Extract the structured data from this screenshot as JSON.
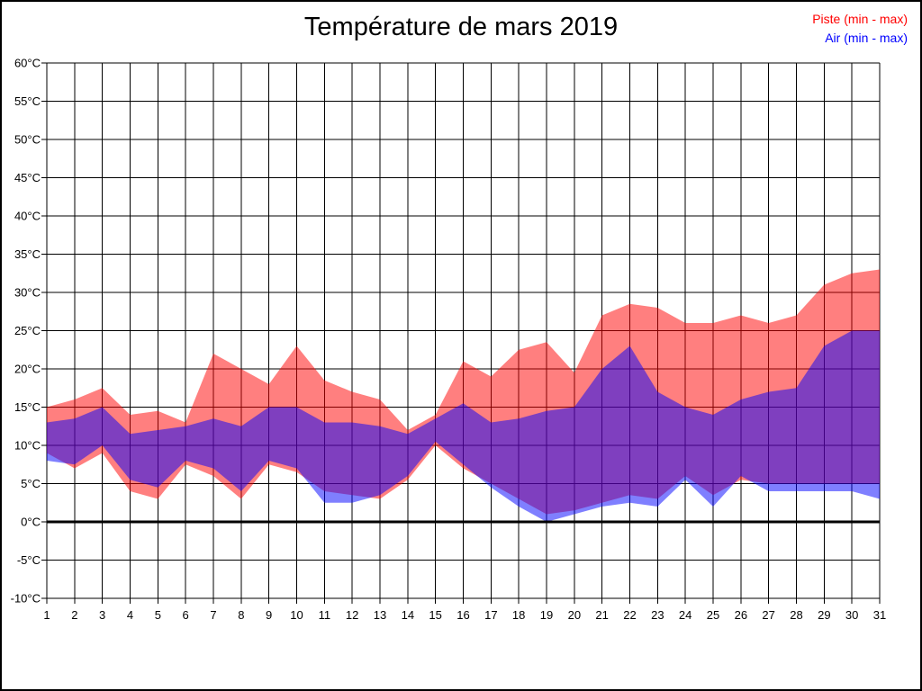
{
  "page": {
    "background": "#ffffff",
    "frame_color": "#000000"
  },
  "chart_data": {
    "type": "area",
    "title": "Température de mars 2019",
    "xlabel": "",
    "ylabel": "",
    "x": [
      1,
      2,
      3,
      4,
      5,
      6,
      7,
      8,
      9,
      10,
      11,
      12,
      13,
      14,
      15,
      16,
      17,
      18,
      19,
      20,
      21,
      22,
      23,
      24,
      25,
      26,
      27,
      28,
      29,
      30,
      31
    ],
    "x_tick_labels": [
      "1",
      "2",
      "3",
      "4",
      "5",
      "6",
      "7",
      "8",
      "9",
      "10",
      "11",
      "12",
      "13",
      "14",
      "15",
      "16",
      "17",
      "18",
      "19",
      "20",
      "21",
      "22",
      "23",
      "24",
      "25",
      "26",
      "27",
      "28",
      "29",
      "30",
      "31"
    ],
    "y_tick_values": [
      60,
      55,
      50,
      45,
      40,
      35,
      30,
      25,
      20,
      15,
      10,
      5,
      0,
      -5,
      -10
    ],
    "y_tick_labels": [
      "60°C",
      "55°C",
      "50°C",
      "45°C",
      "40°C",
      "35°C",
      "30°C",
      "25°C",
      "20°C",
      "15°C",
      "10°C",
      "5°C",
      "0°C",
      "-5°C",
      "-10°C"
    ],
    "ylim": [
      -10,
      60
    ],
    "grid": true,
    "zero_line_value": 0,
    "zero_line_color": "#000000",
    "grid_color": "#000000",
    "text_color": "#000000",
    "legend_position": "top-right",
    "series": [
      {
        "name": "Piste",
        "legend": "Piste (min - max)",
        "color": "#ff0000",
        "fill_opacity": 0.5,
        "min": [
          9,
          7,
          9,
          4,
          3,
          7.5,
          6,
          3,
          7.5,
          6.5,
          4,
          3.5,
          3,
          5.5,
          10,
          7,
          5,
          3,
          1,
          1.5,
          2.5,
          3.5,
          3,
          6,
          3.5,
          5.5,
          5,
          5,
          5,
          5,
          5
        ],
        "max": [
          15,
          16,
          17.5,
          14,
          14.5,
          13,
          22,
          20,
          18,
          23,
          18.5,
          17,
          16,
          12,
          14,
          21,
          19,
          22.5,
          23.5,
          19.5,
          27,
          28.5,
          28,
          26,
          26,
          27,
          26,
          27,
          31,
          32.5,
          33
        ]
      },
      {
        "name": "Air",
        "legend": "Air (min - max)",
        "color": "#0000ff",
        "fill_opacity": 0.5,
        "min": [
          8,
          7.5,
          10,
          5.5,
          4.5,
          8,
          7,
          4,
          8,
          7,
          2.5,
          2.5,
          3.5,
          6,
          10.5,
          7.5,
          4.5,
          2,
          0,
          1,
          2,
          2.5,
          2,
          5.5,
          2,
          6,
          4,
          4,
          4,
          4,
          3
        ],
        "max": [
          13,
          13.5,
          15,
          11.5,
          12,
          12.5,
          13.5,
          12.5,
          15,
          15,
          13,
          13,
          12.5,
          11.5,
          13.5,
          15.5,
          13,
          13.5,
          14.5,
          15,
          20,
          23,
          17,
          15,
          14,
          16,
          17,
          17.5,
          23,
          25,
          25
        ]
      }
    ]
  }
}
